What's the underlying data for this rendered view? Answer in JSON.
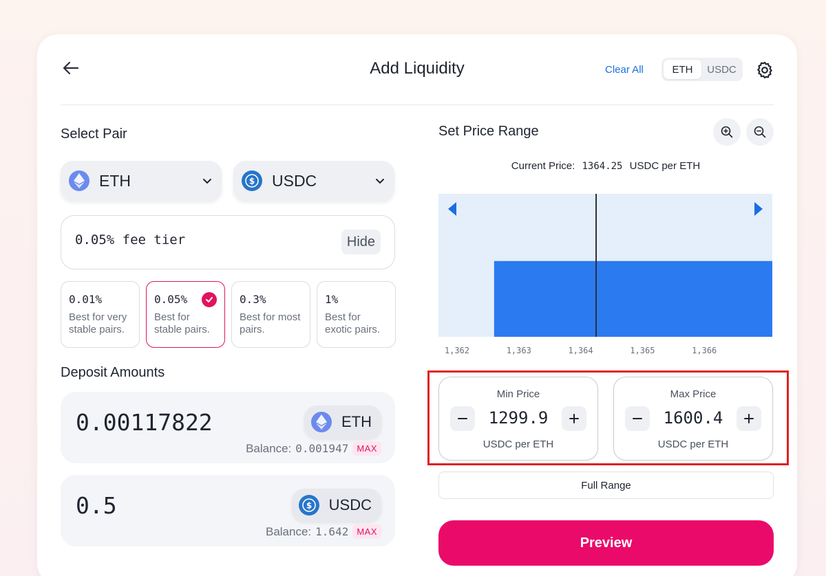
{
  "header": {
    "title": "Add Liquidity",
    "clear_all": "Clear All",
    "toggle": [
      "ETH",
      "USDC"
    ],
    "back_icon": "arrow-left-icon",
    "settings_icon": "gear-icon"
  },
  "select_pair": {
    "title": "Select Pair",
    "token_a": "ETH",
    "token_b": "USDC"
  },
  "fee": {
    "label": "0.05% fee tier",
    "hide": "Hide",
    "tiers": [
      {
        "pct": "0.01%",
        "desc": "Best for very stable pairs."
      },
      {
        "pct": "0.05%",
        "desc": "Best for stable pairs."
      },
      {
        "pct": "0.3%",
        "desc": "Best for most pairs."
      },
      {
        "pct": "1%",
        "desc": "Best for exotic pairs."
      }
    ],
    "selected_index": 1
  },
  "deposit": {
    "title": "Deposit Amounts",
    "eth": {
      "amount": "0.00117822",
      "token": "ETH",
      "balance_label": "Balance:",
      "balance": "0.001947",
      "max": "MAX"
    },
    "usdc": {
      "amount": "0.5",
      "token": "USDC",
      "balance_label": "Balance:",
      "balance": "1.642",
      "max": "MAX"
    }
  },
  "price_range": {
    "title": "Set Price Range",
    "current_label": "Current Price:",
    "current_value": "1364.25",
    "current_unit": "USDC per ETH",
    "min": {
      "label": "Min Price",
      "value": "1299.9",
      "unit": "USDC per ETH"
    },
    "max": {
      "label": "Max Price",
      "value": "1600.4",
      "unit": "USDC per ETH"
    },
    "full_range": "Full Range",
    "preview": "Preview"
  },
  "colors": {
    "accent": "#ea0a6a",
    "link": "#1a6fe0",
    "chart_bar": "#2b7af0",
    "chart_bg": "#e5effb",
    "highlight": "#e02020"
  },
  "chart_data": {
    "type": "area",
    "x_ticks": [
      "1,362",
      "1,363",
      "1,364",
      "1,365",
      "1,366"
    ],
    "xlim": [
      1361.7,
      1367.1
    ],
    "current_price": 1364.25,
    "liquidity": [
      {
        "from": 1362.6,
        "to": 1367.1,
        "value": 0.53
      }
    ]
  }
}
